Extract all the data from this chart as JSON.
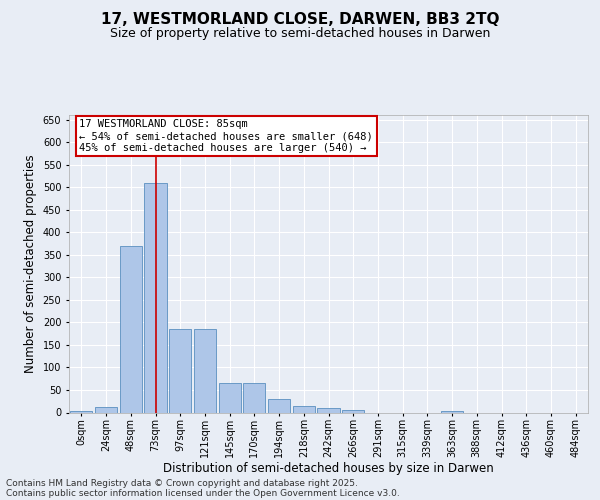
{
  "title_line1": "17, WESTMORLAND CLOSE, DARWEN, BB3 2TQ",
  "title_line2": "Size of property relative to semi-detached houses in Darwen",
  "xlabel": "Distribution of semi-detached houses by size in Darwen",
  "ylabel": "Number of semi-detached properties",
  "categories": [
    "0sqm",
    "24sqm",
    "48sqm",
    "73sqm",
    "97sqm",
    "121sqm",
    "145sqm",
    "170sqm",
    "194sqm",
    "218sqm",
    "242sqm",
    "266sqm",
    "291sqm",
    "315sqm",
    "339sqm",
    "363sqm",
    "388sqm",
    "412sqm",
    "436sqm",
    "460sqm",
    "484sqm"
  ],
  "values": [
    3,
    13,
    370,
    510,
    185,
    185,
    65,
    65,
    30,
    15,
    10,
    6,
    0,
    0,
    0,
    3,
    0,
    0,
    0,
    0,
    0
  ],
  "bar_color": "#aec6e8",
  "bar_edge_color": "#5a8fc0",
  "property_bin_index": 3,
  "vline_color": "#cc0000",
  "annotation_line1": "17 WESTMORLAND CLOSE: 85sqm",
  "annotation_line2": "← 54% of semi-detached houses are smaller (648)",
  "annotation_line3": "45% of semi-detached houses are larger (540) →",
  "annotation_box_color": "#cc0000",
  "ylim": [
    0,
    660
  ],
  "yticks": [
    0,
    50,
    100,
    150,
    200,
    250,
    300,
    350,
    400,
    450,
    500,
    550,
    600,
    650
  ],
  "bg_color": "#e8edf5",
  "plot_bg_color": "#e8edf5",
  "footer_line1": "Contains HM Land Registry data © Crown copyright and database right 2025.",
  "footer_line2": "Contains public sector information licensed under the Open Government Licence v3.0.",
  "title_fontsize": 11,
  "subtitle_fontsize": 9,
  "axis_label_fontsize": 8.5,
  "tick_fontsize": 7,
  "annotation_fontsize": 7.5,
  "footer_fontsize": 6.5
}
